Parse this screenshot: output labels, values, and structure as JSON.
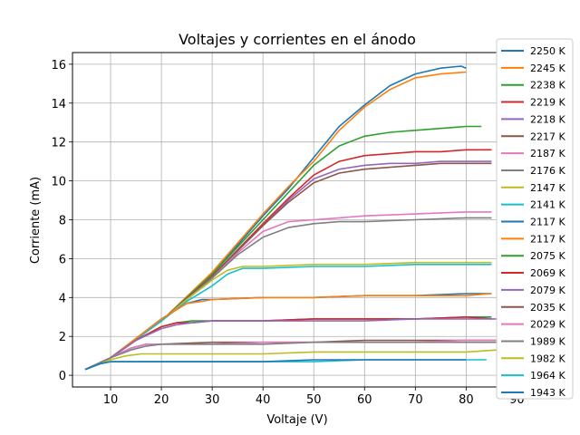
{
  "chart_data": {
    "type": "line",
    "title": "Voltajes y corrientes en el ánodo",
    "xlabel": "Voltaje (V)",
    "ylabel": "Corriente (mA)",
    "xlim": [
      2.5,
      86
    ],
    "ylim": [
      -0.6,
      16.6
    ],
    "xticks": [
      10,
      20,
      30,
      40,
      50,
      60,
      70,
      80,
      90
    ],
    "yticks": [
      0,
      2,
      4,
      6,
      8,
      10,
      12,
      14,
      16
    ],
    "grid": true,
    "legend_position": "right",
    "series": [
      {
        "name": "2250 K",
        "color": "#1f77b4",
        "x": [
          5,
          10,
          20,
          30,
          40,
          45,
          50,
          55,
          60,
          65,
          70,
          75,
          79,
          80
        ],
        "y": [
          0.3,
          0.9,
          2.8,
          5.2,
          8.2,
          9.6,
          11.2,
          12.8,
          13.9,
          14.9,
          15.5,
          15.8,
          15.9,
          15.8
        ]
      },
      {
        "name": "2245 K",
        "color": "#ff7f0e",
        "x": [
          5,
          10,
          20,
          30,
          40,
          45,
          50,
          55,
          60,
          65,
          70,
          75,
          80
        ],
        "y": [
          0.3,
          0.9,
          2.8,
          5.3,
          8.3,
          9.7,
          11.0,
          12.6,
          13.8,
          14.7,
          15.3,
          15.5,
          15.6
        ]
      },
      {
        "name": "2238 K",
        "color": "#2ca02c",
        "x": [
          5,
          10,
          20,
          30,
          40,
          45,
          50,
          55,
          60,
          65,
          70,
          75,
          80,
          83
        ],
        "y": [
          0.3,
          0.9,
          2.8,
          5.2,
          8.0,
          9.4,
          10.8,
          11.8,
          12.3,
          12.5,
          12.6,
          12.7,
          12.8,
          12.8
        ]
      },
      {
        "name": "2219 K",
        "color": "#d62728",
        "x": [
          5,
          10,
          20,
          30,
          40,
          45,
          50,
          55,
          60,
          65,
          70,
          75,
          80,
          85
        ],
        "y": [
          0.3,
          0.9,
          2.8,
          5.1,
          7.8,
          9.1,
          10.3,
          11.0,
          11.3,
          11.4,
          11.5,
          11.5,
          11.6,
          11.6
        ]
      },
      {
        "name": "2218 K",
        "color": "#9467bd",
        "x": [
          5,
          10,
          20,
          30,
          40,
          45,
          50,
          55,
          60,
          65,
          70,
          75,
          80,
          85
        ],
        "y": [
          0.3,
          0.9,
          2.8,
          5.1,
          7.7,
          9.0,
          10.1,
          10.6,
          10.8,
          10.9,
          10.9,
          11.0,
          11.0,
          11.0
        ]
      },
      {
        "name": "2217 K",
        "color": "#8c564b",
        "x": [
          5,
          10,
          20,
          30,
          40,
          45,
          50,
          55,
          60,
          65,
          70,
          75,
          80,
          85
        ],
        "y": [
          0.3,
          0.9,
          2.8,
          5.1,
          7.7,
          8.9,
          9.9,
          10.4,
          10.6,
          10.7,
          10.8,
          10.9,
          10.9,
          10.9
        ]
      },
      {
        "name": "2187 K",
        "color": "#e377c2",
        "x": [
          5,
          10,
          20,
          30,
          35,
          40,
          45,
          50,
          55,
          60,
          70,
          80,
          85
        ],
        "y": [
          0.3,
          0.9,
          2.8,
          5.0,
          6.3,
          7.4,
          7.9,
          8.0,
          8.1,
          8.2,
          8.3,
          8.4,
          8.4
        ]
      },
      {
        "name": "2176 K",
        "color": "#7f7f7f",
        "x": [
          5,
          10,
          20,
          30,
          35,
          40,
          45,
          50,
          55,
          60,
          70,
          80,
          85
        ],
        "y": [
          0.3,
          0.9,
          2.8,
          5.0,
          6.2,
          7.1,
          7.6,
          7.8,
          7.9,
          7.9,
          8.0,
          8.1,
          8.1
        ]
      },
      {
        "name": "2147 K",
        "color": "#bcbd22",
        "x": [
          5,
          10,
          20,
          25,
          30,
          33,
          36,
          40,
          50,
          60,
          70,
          80,
          85
        ],
        "y": [
          0.3,
          0.9,
          2.8,
          3.9,
          4.9,
          5.4,
          5.6,
          5.6,
          5.7,
          5.7,
          5.8,
          5.8,
          5.8
        ]
      },
      {
        "name": "2141 K",
        "color": "#17becf",
        "x": [
          5,
          10,
          20,
          25,
          30,
          33,
          36,
          40,
          50,
          60,
          70,
          80,
          85
        ],
        "y": [
          0.3,
          0.9,
          2.8,
          3.8,
          4.6,
          5.2,
          5.5,
          5.5,
          5.6,
          5.6,
          5.7,
          5.7,
          5.7
        ]
      },
      {
        "name": "2117 K",
        "color": "#1f77b4",
        "x": [
          5,
          10,
          15,
          20,
          25,
          28,
          30,
          40,
          50,
          60,
          70,
          80,
          85
        ],
        "y": [
          0.3,
          0.9,
          1.9,
          2.9,
          3.7,
          3.9,
          3.9,
          4.0,
          4.0,
          4.1,
          4.1,
          4.2,
          4.2
        ]
      },
      {
        "name": "2117 K",
        "color": "#ff7f0e",
        "x": [
          5,
          10,
          15,
          20,
          25,
          28,
          30,
          40,
          50,
          60,
          70,
          80,
          85
        ],
        "y": [
          0.3,
          0.9,
          1.9,
          2.9,
          3.7,
          3.8,
          3.9,
          4.0,
          4.0,
          4.1,
          4.1,
          4.1,
          4.2
        ]
      },
      {
        "name": "2075 K",
        "color": "#2ca02c",
        "x": [
          5,
          10,
          15,
          20,
          23,
          26,
          30,
          40,
          50,
          60,
          70,
          80,
          85
        ],
        "y": [
          0.3,
          0.9,
          1.8,
          2.5,
          2.7,
          2.8,
          2.8,
          2.8,
          2.9,
          2.9,
          2.9,
          3.0,
          3.0
        ]
      },
      {
        "name": "2069 K",
        "color": "#d62728",
        "x": [
          5,
          10,
          15,
          20,
          23,
          26,
          30,
          40,
          50,
          60,
          70,
          80,
          85
        ],
        "y": [
          0.3,
          0.9,
          1.8,
          2.5,
          2.7,
          2.7,
          2.8,
          2.8,
          2.9,
          2.9,
          2.9,
          3.0,
          2.9
        ]
      },
      {
        "name": "2079 K",
        "color": "#9467bd",
        "x": [
          5,
          10,
          15,
          20,
          23,
          26,
          30,
          40,
          50,
          60,
          70,
          80,
          86
        ],
        "y": [
          0.3,
          0.9,
          1.8,
          2.4,
          2.6,
          2.7,
          2.8,
          2.8,
          2.8,
          2.8,
          2.9,
          2.9,
          2.9
        ]
      },
      {
        "name": "2035 K",
        "color": "#8c564b",
        "x": [
          5,
          10,
          14,
          17,
          20,
          30,
          40,
          50,
          60,
          70,
          80,
          86
        ],
        "y": [
          0.3,
          0.9,
          1.4,
          1.6,
          1.6,
          1.7,
          1.7,
          1.7,
          1.8,
          1.8,
          1.8,
          1.8
        ]
      },
      {
        "name": "2029 K",
        "color": "#e377c2",
        "x": [
          5,
          10,
          14,
          17,
          20,
          30,
          40,
          50,
          60,
          70,
          80,
          86
        ],
        "y": [
          0.3,
          0.9,
          1.4,
          1.6,
          1.6,
          1.6,
          1.7,
          1.7,
          1.7,
          1.7,
          1.8,
          1.8
        ]
      },
      {
        "name": "1989 K",
        "color": "#7f7f7f",
        "x": [
          5,
          10,
          14,
          17,
          20,
          30,
          40,
          50,
          60,
          70,
          80,
          86
        ],
        "y": [
          0.3,
          0.9,
          1.3,
          1.5,
          1.6,
          1.6,
          1.6,
          1.7,
          1.7,
          1.7,
          1.7,
          1.7
        ]
      },
      {
        "name": "1982 K",
        "color": "#bcbd22",
        "x": [
          5,
          10,
          13,
          16,
          20,
          30,
          40,
          50,
          60,
          70,
          80,
          86
        ],
        "y": [
          0.3,
          0.8,
          1.0,
          1.1,
          1.1,
          1.1,
          1.1,
          1.2,
          1.2,
          1.2,
          1.2,
          1.3
        ]
      },
      {
        "name": "1964 K",
        "color": "#17becf",
        "x": [
          5,
          8,
          10,
          13,
          20,
          30,
          40,
          50,
          60,
          70,
          80,
          84
        ],
        "y": [
          0.3,
          0.6,
          0.7,
          0.7,
          0.7,
          0.7,
          0.7,
          0.7,
          0.8,
          0.8,
          0.8,
          0.8
        ]
      },
      {
        "name": "1943 K",
        "color": "#1f77b4",
        "x": [
          5,
          8,
          10,
          13,
          20,
          30,
          40,
          50,
          60,
          70,
          78,
          80
        ],
        "y": [
          0.3,
          0.6,
          0.7,
          0.7,
          0.7,
          0.7,
          0.7,
          0.8,
          0.8,
          0.8,
          0.8,
          0.8
        ]
      }
    ]
  }
}
